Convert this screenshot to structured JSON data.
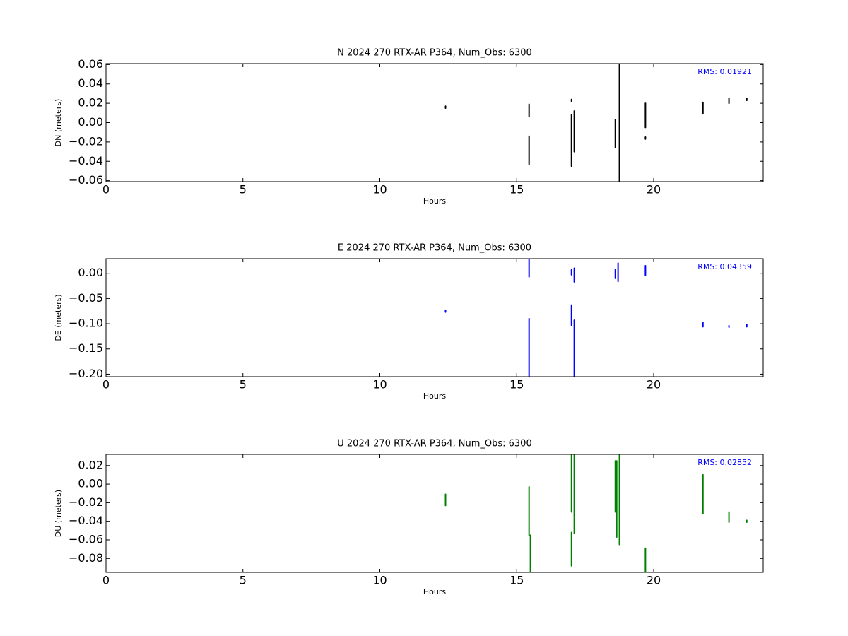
{
  "chart_data": [
    {
      "type": "range",
      "title": "N 2024 270 RTX-AR  P364, Num_Obs: 6300",
      "xlabel": "Hours",
      "ylabel": "DN (meters)",
      "annotation": "RMS:  0.01921",
      "annotation_color": "#0000ff",
      "color": "#000000",
      "xlim": [
        0,
        24
      ],
      "xticks": [
        0,
        5,
        10,
        15,
        20
      ],
      "ylim": [
        -0.061,
        0.061
      ],
      "yticks": [
        0.06,
        0.04,
        0.02,
        {
          "value": 0,
          "label": "0.00"
        },
        {
          "value": -0.02,
          "label": "−0.02"
        },
        {
          "value": -0.04,
          "label": "−0.04"
        },
        {
          "value": -0.06,
          "label": "−0.06"
        }
      ],
      "x": [
        12.4,
        15.45,
        15.45,
        17.0,
        17.0,
        17.1,
        18.6,
        18.75,
        19.7,
        19.7,
        21.8,
        22.75,
        23.4
      ],
      "low": [
        0.015,
        0.006,
        -0.043,
        0.022,
        -0.045,
        -0.03,
        -0.026,
        -0.061,
        -0.005,
        -0.017,
        0.009,
        0.02,
        0.023
      ],
      "high": [
        0.017,
        0.019,
        -0.014,
        0.024,
        0.008,
        0.012,
        0.003,
        0.061,
        0.02,
        -0.015,
        0.021,
        0.025,
        0.025
      ]
    },
    {
      "type": "range",
      "title": "E 2024 270 RTX-AR  P364, Num_Obs: 6300",
      "xlabel": "Hours",
      "ylabel": "DE (meters)",
      "annotation": "RMS:  0.04359",
      "annotation_color": "#0000ff",
      "color": "#0000ff",
      "xlim": [
        0,
        24
      ],
      "xticks": [
        0,
        5,
        10,
        15,
        20
      ],
      "ylim": [
        -0.205,
        0.029
      ],
      "yticks": [
        {
          "value": 0,
          "label": "0.00"
        },
        {
          "value": -0.05,
          "label": "−0.05"
        },
        {
          "value": -0.1,
          "label": "−0.10"
        },
        {
          "value": -0.15,
          "label": "−0.15"
        },
        {
          "value": -0.2,
          "label": "−0.20"
        }
      ],
      "x": [
        12.4,
        15.45,
        15.45,
        17.0,
        17.0,
        17.1,
        17.1,
        18.6,
        18.7,
        19.7,
        21.8,
        22.75,
        23.4
      ],
      "low": [
        -0.077,
        -0.205,
        -0.007,
        -0.103,
        -0.003,
        -0.205,
        -0.017,
        -0.01,
        -0.016,
        -0.004,
        -0.106,
        -0.107,
        -0.106
      ],
      "high": [
        -0.074,
        -0.09,
        0.029,
        -0.063,
        0.007,
        -0.093,
        0.01,
        0.008,
        0.02,
        0.015,
        -0.098,
        -0.104,
        -0.102
      ]
    },
    {
      "type": "range",
      "title": "U 2024 270 RTX-AR  P364, Num_Obs: 6300",
      "xlabel": "Hours",
      "ylabel": "DU (meters)",
      "annotation": "RMS:  0.02852",
      "annotation_color": "#0000ff",
      "color": "#008000",
      "xlim": [
        0,
        24
      ],
      "xticks": [
        0,
        5,
        10,
        15,
        20
      ],
      "ylim": [
        -0.095,
        0.032
      ],
      "yticks": [
        0.02,
        {
          "value": 0,
          "label": "0.00"
        },
        {
          "value": -0.02,
          "label": "−0.02"
        },
        {
          "value": -0.04,
          "label": "−0.04"
        },
        {
          "value": -0.06,
          "label": "−0.06"
        },
        {
          "value": -0.08,
          "label": "−0.08"
        }
      ],
      "x": [
        12.4,
        15.45,
        15.5,
        17.0,
        17.0,
        17.1,
        18.6,
        18.65,
        18.75,
        19.7,
        21.8,
        22.75,
        23.4
      ],
      "low": [
        -0.023,
        -0.055,
        -0.094,
        -0.088,
        -0.03,
        -0.053,
        -0.03,
        -0.057,
        -0.065,
        -0.095,
        -0.032,
        -0.041,
        -0.041
      ],
      "high": [
        -0.011,
        -0.003,
        -0.055,
        -0.052,
        0.032,
        0.032,
        0.025,
        0.025,
        0.032,
        -0.069,
        0.01,
        -0.03,
        -0.039
      ]
    }
  ]
}
